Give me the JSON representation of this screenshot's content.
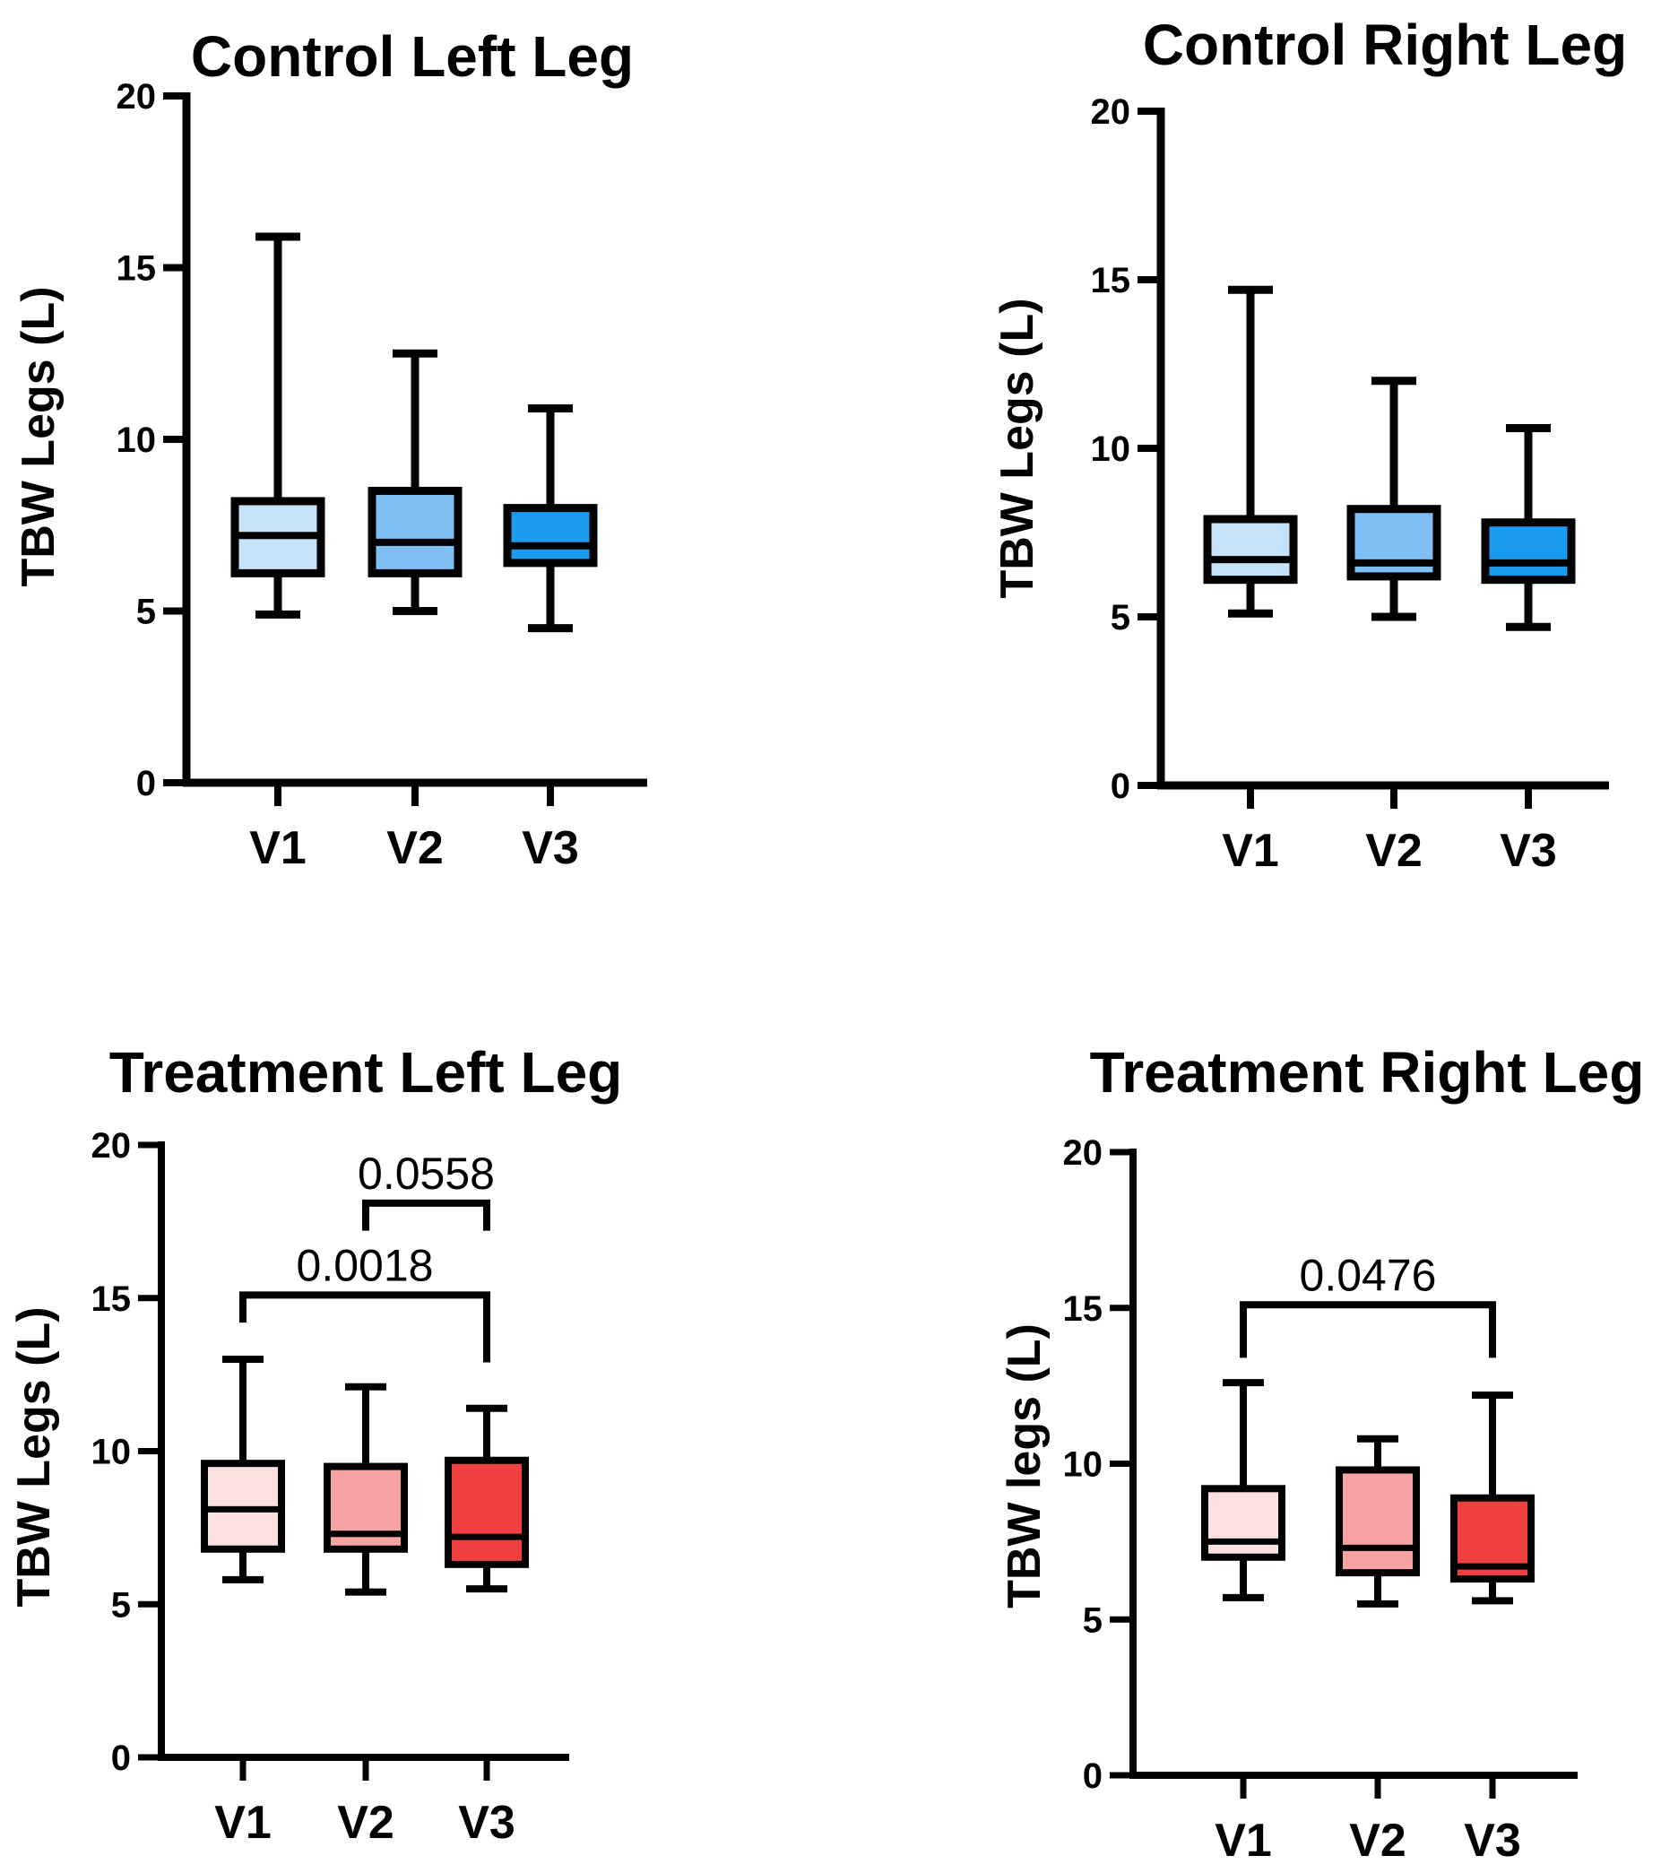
{
  "chart_data": [
    {
      "type": "box",
      "title": "Control Left Leg",
      "xlabel": "",
      "ylabel": "TBW Legs (L)",
      "ylim": [
        0,
        20
      ],
      "yticks": [
        0,
        5,
        10,
        15,
        20
      ],
      "categories": [
        "V1",
        "V2",
        "V3"
      ],
      "boxes": [
        {
          "category": "V1",
          "min": 4.9,
          "q1": 6.1,
          "median": 7.2,
          "q3": 8.2,
          "max": 15.9,
          "color": "#C6E2F8"
        },
        {
          "category": "V2",
          "min": 5.0,
          "q1": 6.1,
          "median": 7.0,
          "q3": 8.5,
          "max": 12.5,
          "color": "#7FBFF5"
        },
        {
          "category": "V3",
          "min": 4.5,
          "q1": 6.4,
          "median": 6.9,
          "q3": 8.0,
          "max": 10.9,
          "color": "#1A9BF0"
        }
      ],
      "significance": []
    },
    {
      "type": "box",
      "title": "Control Right Leg",
      "xlabel": "",
      "ylabel": "TBW Legs (L)",
      "ylim": [
        0,
        20
      ],
      "yticks": [
        0,
        5,
        10,
        15,
        20
      ],
      "categories": [
        "V1",
        "V2",
        "V3"
      ],
      "boxes": [
        {
          "category": "V1",
          "min": 5.1,
          "q1": 6.1,
          "median": 6.7,
          "q3": 7.9,
          "max": 14.7,
          "color": "#C6E2F8"
        },
        {
          "category": "V2",
          "min": 5.0,
          "q1": 6.2,
          "median": 6.6,
          "q3": 8.2,
          "max": 12.0,
          "color": "#7FBFF5"
        },
        {
          "category": "V3",
          "min": 4.7,
          "q1": 6.1,
          "median": 6.6,
          "q3": 7.8,
          "max": 10.6,
          "color": "#1A9BF0"
        }
      ],
      "significance": []
    },
    {
      "type": "box",
      "title": "Treatment Left Leg",
      "xlabel": "",
      "ylabel": "TBW Legs (L)",
      "ylim": [
        0,
        20
      ],
      "yticks": [
        0,
        5,
        10,
        15,
        20
      ],
      "categories": [
        "V1",
        "V2",
        "V3"
      ],
      "boxes": [
        {
          "category": "V1",
          "min": 5.8,
          "q1": 6.8,
          "median": 8.1,
          "q3": 9.6,
          "max": 13.0,
          "color": "#FBE0E0"
        },
        {
          "category": "V2",
          "min": 5.4,
          "q1": 6.8,
          "median": 7.3,
          "q3": 9.5,
          "max": 12.1,
          "color": "#F5A3A3"
        },
        {
          "category": "V3",
          "min": 5.5,
          "q1": 6.3,
          "median": 7.2,
          "q3": 9.7,
          "max": 11.4,
          "color": "#F04040"
        }
      ],
      "significance": [
        {
          "from": "V2",
          "to": "V3",
          "label": "0.0558",
          "y": 18.1,
          "left_drop": 17.2,
          "right_drop": 17.2
        },
        {
          "from": "V1",
          "to": "V3",
          "label": "0.0018",
          "y": 15.1,
          "left_drop": 14.2,
          "right_drop": 12.9
        }
      ]
    },
    {
      "type": "box",
      "title": "Treatment Right Leg",
      "xlabel": "",
      "ylabel": "TBW legs (L)",
      "ylim": [
        0,
        20
      ],
      "yticks": [
        0,
        5,
        10,
        15,
        20
      ],
      "categories": [
        "V1",
        "V2",
        "V3"
      ],
      "boxes": [
        {
          "category": "V1",
          "min": 5.7,
          "q1": 7.0,
          "median": 7.5,
          "q3": 9.2,
          "max": 12.6,
          "color": "#FBE0E0"
        },
        {
          "category": "V2",
          "min": 5.5,
          "q1": 6.5,
          "median": 7.3,
          "q3": 9.8,
          "max": 10.8,
          "color": "#F5A3A3"
        },
        {
          "category": "V3",
          "min": 5.6,
          "q1": 6.3,
          "median": 6.7,
          "q3": 8.9,
          "max": 12.2,
          "color": "#F04040"
        }
      ],
      "significance": [
        {
          "from": "V1",
          "to": "V3",
          "label": "0.0476",
          "y": 15.1,
          "left_drop": 13.4,
          "right_drop": 13.4
        }
      ]
    }
  ]
}
